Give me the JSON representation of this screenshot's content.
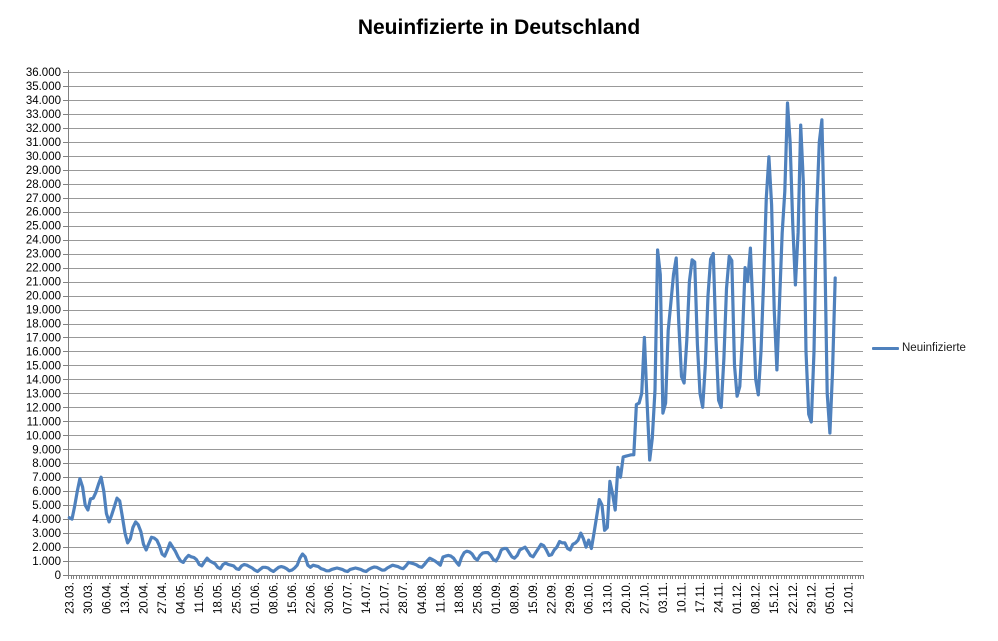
{
  "chart_data": {
    "type": "line",
    "title": "Neuinfizierte in Deutschland",
    "grid": true,
    "legend": {
      "position": "right",
      "entries": [
        {
          "label": "Neuinfizierte",
          "color": "#4F81BD"
        }
      ]
    },
    "colors": {
      "line": "#4F81BD",
      "gridline": "#999999",
      "axis": "#808080",
      "text": "#000000"
    },
    "y_axis": {
      "min": 0,
      "max": 36000,
      "step": 1000,
      "tick_labels": [
        "0",
        "1.000",
        "2.000",
        "3.000",
        "4.000",
        "5.000",
        "6.000",
        "7.000",
        "8.000",
        "9.000",
        "10.000",
        "11.000",
        "12.000",
        "13.000",
        "14.000",
        "15.000",
        "16.000",
        "17.000",
        "18.000",
        "19.000",
        "20.000",
        "21.000",
        "22.000",
        "23.000",
        "24.000",
        "25.000",
        "26.000",
        "27.000",
        "28.000",
        "29.000",
        "30.000",
        "31.000",
        "32.000",
        "33.000",
        "34.000",
        "35.000",
        "36.000"
      ]
    },
    "x_axis": {
      "label_every": 7,
      "total_categories": 300,
      "tick_labels": [
        "23.03.",
        "30.03.",
        "06.04.",
        "13.04.",
        "20.04.",
        "27.04.",
        "04.05.",
        "11.05.",
        "18.05.",
        "25.05.",
        "01.06.",
        "08.06.",
        "15.06.",
        "22.06.",
        "30.06.",
        "07.07.",
        "14.07.",
        "21.07.",
        "28.07.",
        "04.08.",
        "11.08.",
        "18.08.",
        "25.08.",
        "01.09.",
        "08.09.",
        "15.09.",
        "22.09.",
        "29.09.",
        "06.10.",
        "13.10.",
        "20.10.",
        "27.10.",
        "03.11.",
        "10.11.",
        "17.11.",
        "24.11.",
        "01.12.",
        "08.12.",
        "15.12.",
        "22.12.",
        "29.12.",
        "05.01.",
        "12.01."
      ]
    },
    "series": [
      {
        "name": "Neuinfizierte",
        "color": "#4F81BD",
        "start_label": "23.03.",
        "values": [
          4100,
          4000,
          4900,
          6000,
          6900,
          6300,
          5000,
          4650,
          5450,
          5500,
          5900,
          6500,
          7000,
          6000,
          4400,
          3800,
          4300,
          4900,
          5500,
          5300,
          4200,
          3000,
          2300,
          2600,
          3400,
          3800,
          3600,
          3100,
          2200,
          1800,
          2250,
          2700,
          2650,
          2500,
          2100,
          1500,
          1350,
          1800,
          2300,
          2000,
          1700,
          1300,
          1000,
          900,
          1200,
          1400,
          1300,
          1250,
          1100,
          750,
          650,
          950,
          1200,
          1000,
          900,
          800,
          550,
          450,
          750,
          850,
          750,
          700,
          650,
          450,
          400,
          650,
          750,
          700,
          600,
          500,
          350,
          250,
          400,
          550,
          550,
          500,
          350,
          250,
          400,
          550,
          600,
          550,
          450,
          300,
          350,
          500,
          700,
          1200,
          1500,
          1300,
          700,
          550,
          700,
          650,
          600,
          450,
          400,
          300,
          300,
          400,
          450,
          500,
          450,
          400,
          300,
          250,
          400,
          450,
          500,
          450,
          400,
          300,
          250,
          400,
          500,
          570,
          550,
          450,
          350,
          360,
          500,
          600,
          700,
          650,
          600,
          500,
          450,
          650,
          900,
          850,
          800,
          720,
          600,
          550,
          750,
          1000,
          1200,
          1100,
          1000,
          860,
          700,
          1290,
          1350,
          1400,
          1350,
          1200,
          930,
          700,
          1250,
          1600,
          1700,
          1650,
          1500,
          1200,
          1070,
          1400,
          1570,
          1600,
          1600,
          1400,
          1100,
          1000,
          1300,
          1800,
          1900,
          1900,
          1600,
          1300,
          1200,
          1400,
          1800,
          1900,
          2000,
          1700,
          1400,
          1300,
          1600,
          1900,
          2200,
          2100,
          1800,
          1400,
          1450,
          1800,
          2000,
          2400,
          2300,
          2300,
          1900,
          1800,
          2200,
          2300,
          2500,
          3000,
          2600,
          2000,
          2500,
          1900,
          3000,
          4200,
          5400,
          5000,
          3200,
          3400,
          6700,
          5800,
          4650,
          7700,
          7000,
          8450,
          8500,
          8550,
          8600,
          8600,
          12200,
          12300,
          13000,
          17000,
          12500,
          8230,
          9800,
          13240,
          23260,
          21500,
          11590,
          12300,
          17500,
          19500,
          21500,
          22690,
          18000,
          14200,
          13740,
          16800,
          21000,
          22550,
          22400,
          16500,
          13000,
          12000,
          15000,
          20000,
          22600,
          23000,
          17000,
          12500,
          12000,
          15500,
          20500,
          22800,
          22500,
          15000,
          12800,
          13500,
          17000,
          22000,
          21000,
          23400,
          19000,
          14000,
          12890,
          16000,
          21000,
          27000,
          29930,
          26500,
          19000,
          14680,
          19500,
          24500,
          27450,
          33780,
          31000,
          25000,
          20760,
          24500,
          32200,
          28000,
          16000,
          11500,
          10950,
          16000,
          26000,
          31000,
          32570,
          24000,
          13000,
          10160,
          14500,
          21260
        ]
      }
    ]
  }
}
